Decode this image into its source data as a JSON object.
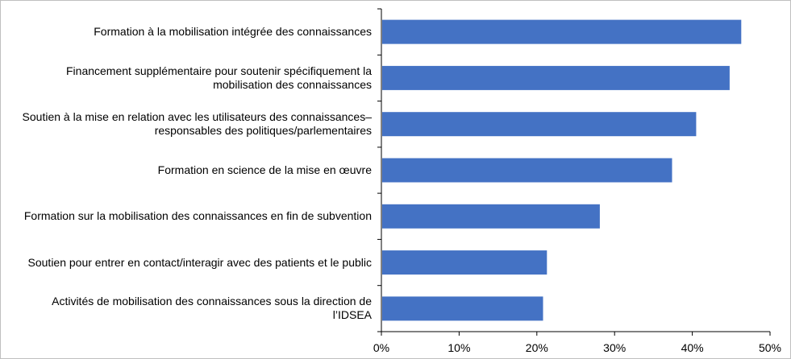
{
  "chart_data": {
    "type": "bar",
    "orientation": "horizontal",
    "categories": [
      "Formation à la mobilisation intégrée des connaissances",
      "Financement supplémentaire pour soutenir spécifiquement la mobilisation des connaissances",
      "Soutien à la mise en relation avec les utilisateurs des connaissances–responsables des politiques/parlementaires",
      "Formation en science de la mise en œuvre",
      "Formation sur la mobilisation des connaissances en fin de subvention",
      "Soutien pour entrer en contact/interagir avec des patients et le public",
      "Activités de mobilisation des connaissances sous la direction de l’IDSEA"
    ],
    "category_lines": [
      [
        "Formation à la mobilisation intégrée des connaissances"
      ],
      [
        "Financement supplémentaire pour soutenir spécifiquement la",
        "mobilisation des connaissances"
      ],
      [
        "Soutien à la mise en relation avec les utilisateurs des connaissances–",
        "responsables des politiques/parlementaires"
      ],
      [
        "Formation en science de la mise en œuvre"
      ],
      [
        "Formation sur la mobilisation des connaissances en fin de subvention"
      ],
      [
        "Soutien pour entrer en contact/interagir avec des patients et le public"
      ],
      [
        "Activités de mobilisation des connaissances sous la direction de",
        "l’IDSEA"
      ]
    ],
    "values": [
      46.3,
      44.8,
      40.5,
      37.4,
      28.1,
      21.3,
      20.8
    ],
    "xlim": [
      0,
      50
    ],
    "xticks": [
      0,
      10,
      20,
      30,
      40,
      50
    ],
    "xtick_labels": [
      "0%",
      "10%",
      "20%",
      "30%",
      "40%",
      "50%"
    ],
    "title": "",
    "xlabel": "",
    "ylabel": "",
    "bar_color": "#4472C4",
    "grid": false,
    "legend": "none"
  }
}
